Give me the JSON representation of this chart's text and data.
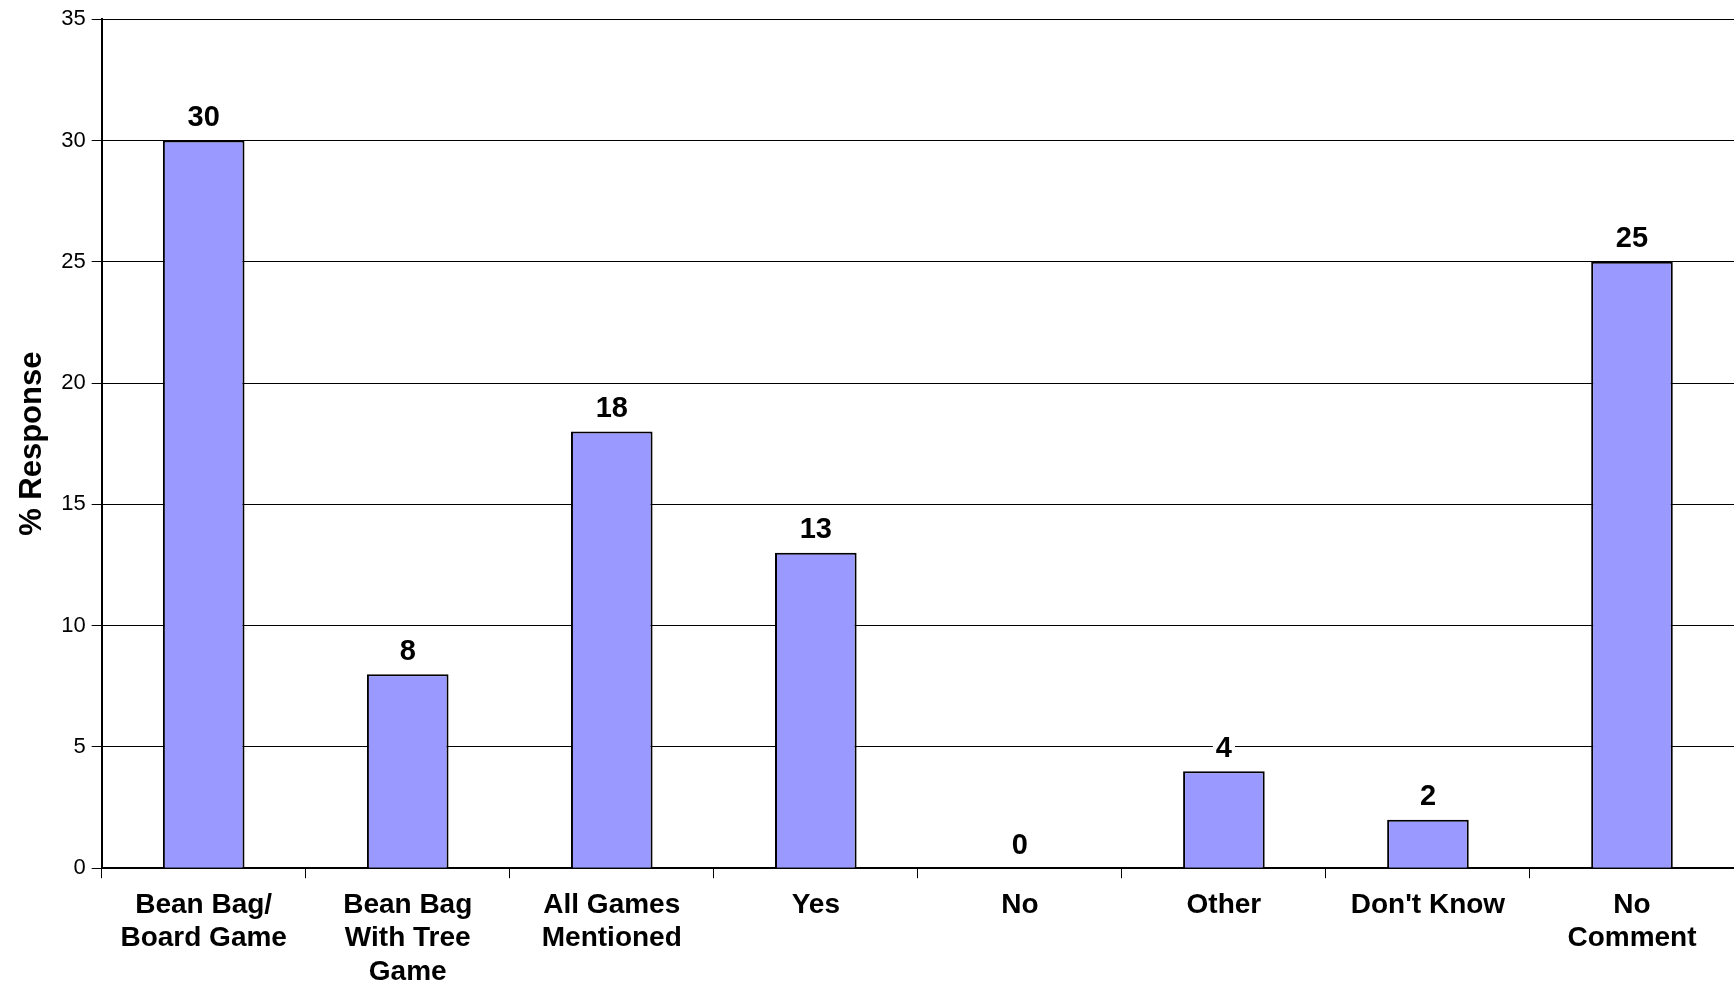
{
  "chart_data": {
    "type": "bar",
    "ylabel": "% Response",
    "categories": [
      "Bean Bag/\nBoard Game",
      "Bean Bag\nWith Tree\nGame",
      "All Games\nMentioned",
      "Yes",
      "No",
      "Other",
      "Don't Know",
      "No\nComment"
    ],
    "values": [
      30,
      8,
      18,
      13,
      0,
      4,
      2,
      25
    ],
    "color": "#9999ff",
    "ylim": [
      0,
      35
    ],
    "yticks": [
      0,
      5,
      10,
      15,
      20,
      25,
      30,
      35
    ],
    "grid": "y",
    "data_labels": true,
    "legend": false
  }
}
